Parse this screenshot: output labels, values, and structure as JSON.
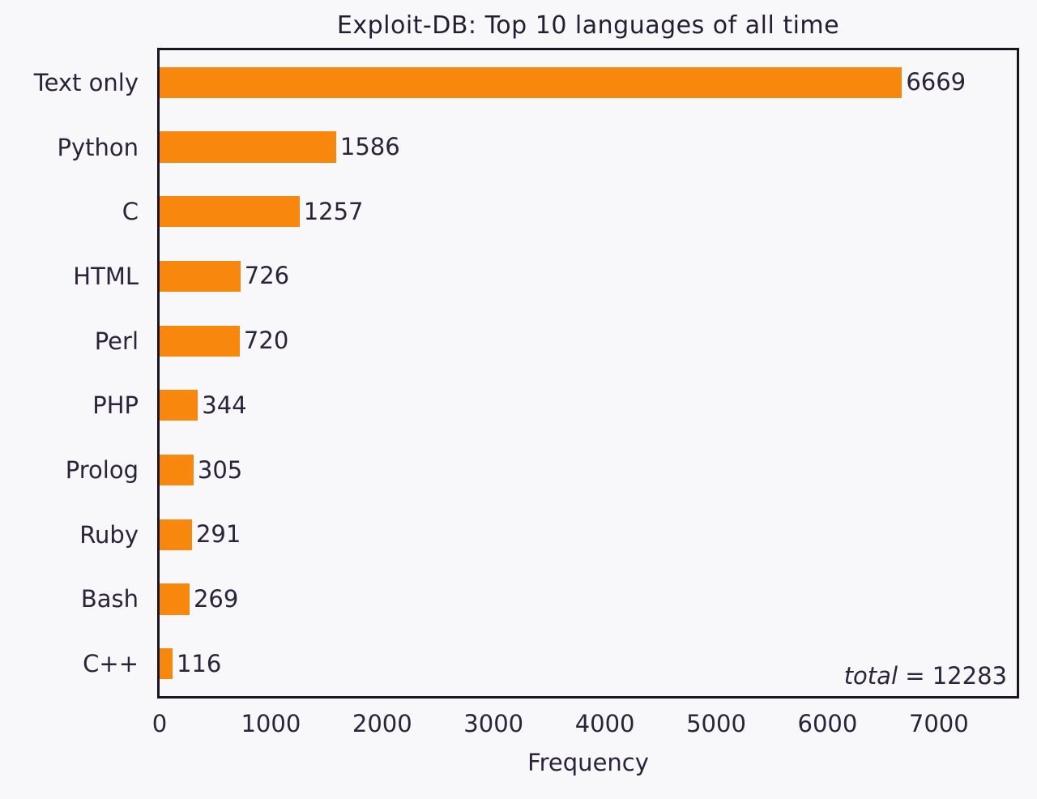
{
  "chart_data": {
    "type": "bar",
    "orientation": "horizontal",
    "title": "Exploit-DB: Top 10 languages of all time",
    "categories": [
      "Text only",
      "Python",
      "C",
      "HTML",
      "Perl",
      "PHP",
      "Prolog",
      "Ruby",
      "Bash",
      "C++"
    ],
    "values": [
      6669,
      1586,
      1257,
      726,
      720,
      344,
      305,
      291,
      269,
      116
    ],
    "xlabel": "Frequency",
    "ylabel": "",
    "xticks": [
      0,
      1000,
      2000,
      3000,
      4000,
      5000,
      6000,
      7000
    ],
    "xlim": [
      0,
      7700
    ],
    "grid": false,
    "legend": "none",
    "bar_color": "#f8870e",
    "annotation": {
      "italic_part": "total",
      "rest_part": " = 12283"
    },
    "total": 12283
  }
}
